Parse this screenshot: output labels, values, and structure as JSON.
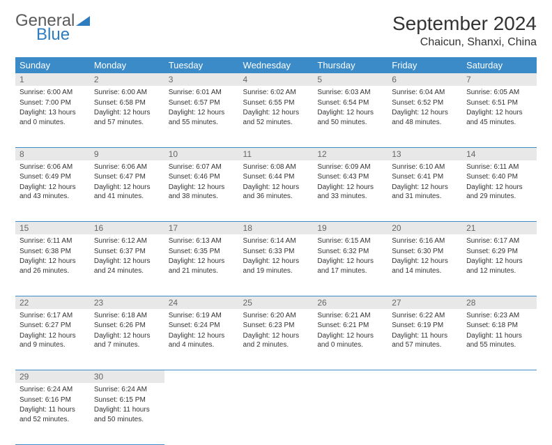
{
  "brand": {
    "general": "General",
    "blue": "Blue"
  },
  "header": {
    "title": "September 2024",
    "location": "Chaicun, Shanxi, China"
  },
  "calendar": {
    "header_bg": "#3b8bc9",
    "header_fg": "#ffffff",
    "daynum_bg": "#e8e8e8",
    "daynum_fg": "#666666",
    "cell_fg": "#333333",
    "days": [
      "Sunday",
      "Monday",
      "Tuesday",
      "Wednesday",
      "Thursday",
      "Friday",
      "Saturday"
    ],
    "weeks": [
      [
        {
          "n": "1",
          "sunrise": "Sunrise: 6:00 AM",
          "sunset": "Sunset: 7:00 PM",
          "day": "Daylight: 13 hours and 0 minutes."
        },
        {
          "n": "2",
          "sunrise": "Sunrise: 6:00 AM",
          "sunset": "Sunset: 6:58 PM",
          "day": "Daylight: 12 hours and 57 minutes."
        },
        {
          "n": "3",
          "sunrise": "Sunrise: 6:01 AM",
          "sunset": "Sunset: 6:57 PM",
          "day": "Daylight: 12 hours and 55 minutes."
        },
        {
          "n": "4",
          "sunrise": "Sunrise: 6:02 AM",
          "sunset": "Sunset: 6:55 PM",
          "day": "Daylight: 12 hours and 52 minutes."
        },
        {
          "n": "5",
          "sunrise": "Sunrise: 6:03 AM",
          "sunset": "Sunset: 6:54 PM",
          "day": "Daylight: 12 hours and 50 minutes."
        },
        {
          "n": "6",
          "sunrise": "Sunrise: 6:04 AM",
          "sunset": "Sunset: 6:52 PM",
          "day": "Daylight: 12 hours and 48 minutes."
        },
        {
          "n": "7",
          "sunrise": "Sunrise: 6:05 AM",
          "sunset": "Sunset: 6:51 PM",
          "day": "Daylight: 12 hours and 45 minutes."
        }
      ],
      [
        {
          "n": "8",
          "sunrise": "Sunrise: 6:06 AM",
          "sunset": "Sunset: 6:49 PM",
          "day": "Daylight: 12 hours and 43 minutes."
        },
        {
          "n": "9",
          "sunrise": "Sunrise: 6:06 AM",
          "sunset": "Sunset: 6:47 PM",
          "day": "Daylight: 12 hours and 41 minutes."
        },
        {
          "n": "10",
          "sunrise": "Sunrise: 6:07 AM",
          "sunset": "Sunset: 6:46 PM",
          "day": "Daylight: 12 hours and 38 minutes."
        },
        {
          "n": "11",
          "sunrise": "Sunrise: 6:08 AM",
          "sunset": "Sunset: 6:44 PM",
          "day": "Daylight: 12 hours and 36 minutes."
        },
        {
          "n": "12",
          "sunrise": "Sunrise: 6:09 AM",
          "sunset": "Sunset: 6:43 PM",
          "day": "Daylight: 12 hours and 33 minutes."
        },
        {
          "n": "13",
          "sunrise": "Sunrise: 6:10 AM",
          "sunset": "Sunset: 6:41 PM",
          "day": "Daylight: 12 hours and 31 minutes."
        },
        {
          "n": "14",
          "sunrise": "Sunrise: 6:11 AM",
          "sunset": "Sunset: 6:40 PM",
          "day": "Daylight: 12 hours and 29 minutes."
        }
      ],
      [
        {
          "n": "15",
          "sunrise": "Sunrise: 6:11 AM",
          "sunset": "Sunset: 6:38 PM",
          "day": "Daylight: 12 hours and 26 minutes."
        },
        {
          "n": "16",
          "sunrise": "Sunrise: 6:12 AM",
          "sunset": "Sunset: 6:37 PM",
          "day": "Daylight: 12 hours and 24 minutes."
        },
        {
          "n": "17",
          "sunrise": "Sunrise: 6:13 AM",
          "sunset": "Sunset: 6:35 PM",
          "day": "Daylight: 12 hours and 21 minutes."
        },
        {
          "n": "18",
          "sunrise": "Sunrise: 6:14 AM",
          "sunset": "Sunset: 6:33 PM",
          "day": "Daylight: 12 hours and 19 minutes."
        },
        {
          "n": "19",
          "sunrise": "Sunrise: 6:15 AM",
          "sunset": "Sunset: 6:32 PM",
          "day": "Daylight: 12 hours and 17 minutes."
        },
        {
          "n": "20",
          "sunrise": "Sunrise: 6:16 AM",
          "sunset": "Sunset: 6:30 PM",
          "day": "Daylight: 12 hours and 14 minutes."
        },
        {
          "n": "21",
          "sunrise": "Sunrise: 6:17 AM",
          "sunset": "Sunset: 6:29 PM",
          "day": "Daylight: 12 hours and 12 minutes."
        }
      ],
      [
        {
          "n": "22",
          "sunrise": "Sunrise: 6:17 AM",
          "sunset": "Sunset: 6:27 PM",
          "day": "Daylight: 12 hours and 9 minutes."
        },
        {
          "n": "23",
          "sunrise": "Sunrise: 6:18 AM",
          "sunset": "Sunset: 6:26 PM",
          "day": "Daylight: 12 hours and 7 minutes."
        },
        {
          "n": "24",
          "sunrise": "Sunrise: 6:19 AM",
          "sunset": "Sunset: 6:24 PM",
          "day": "Daylight: 12 hours and 4 minutes."
        },
        {
          "n": "25",
          "sunrise": "Sunrise: 6:20 AM",
          "sunset": "Sunset: 6:23 PM",
          "day": "Daylight: 12 hours and 2 minutes."
        },
        {
          "n": "26",
          "sunrise": "Sunrise: 6:21 AM",
          "sunset": "Sunset: 6:21 PM",
          "day": "Daylight: 12 hours and 0 minutes."
        },
        {
          "n": "27",
          "sunrise": "Sunrise: 6:22 AM",
          "sunset": "Sunset: 6:19 PM",
          "day": "Daylight: 11 hours and 57 minutes."
        },
        {
          "n": "28",
          "sunrise": "Sunrise: 6:23 AM",
          "sunset": "Sunset: 6:18 PM",
          "day": "Daylight: 11 hours and 55 minutes."
        }
      ],
      [
        {
          "n": "29",
          "sunrise": "Sunrise: 6:24 AM",
          "sunset": "Sunset: 6:16 PM",
          "day": "Daylight: 11 hours and 52 minutes."
        },
        {
          "n": "30",
          "sunrise": "Sunrise: 6:24 AM",
          "sunset": "Sunset: 6:15 PM",
          "day": "Daylight: 11 hours and 50 minutes."
        },
        null,
        null,
        null,
        null,
        null
      ]
    ]
  }
}
